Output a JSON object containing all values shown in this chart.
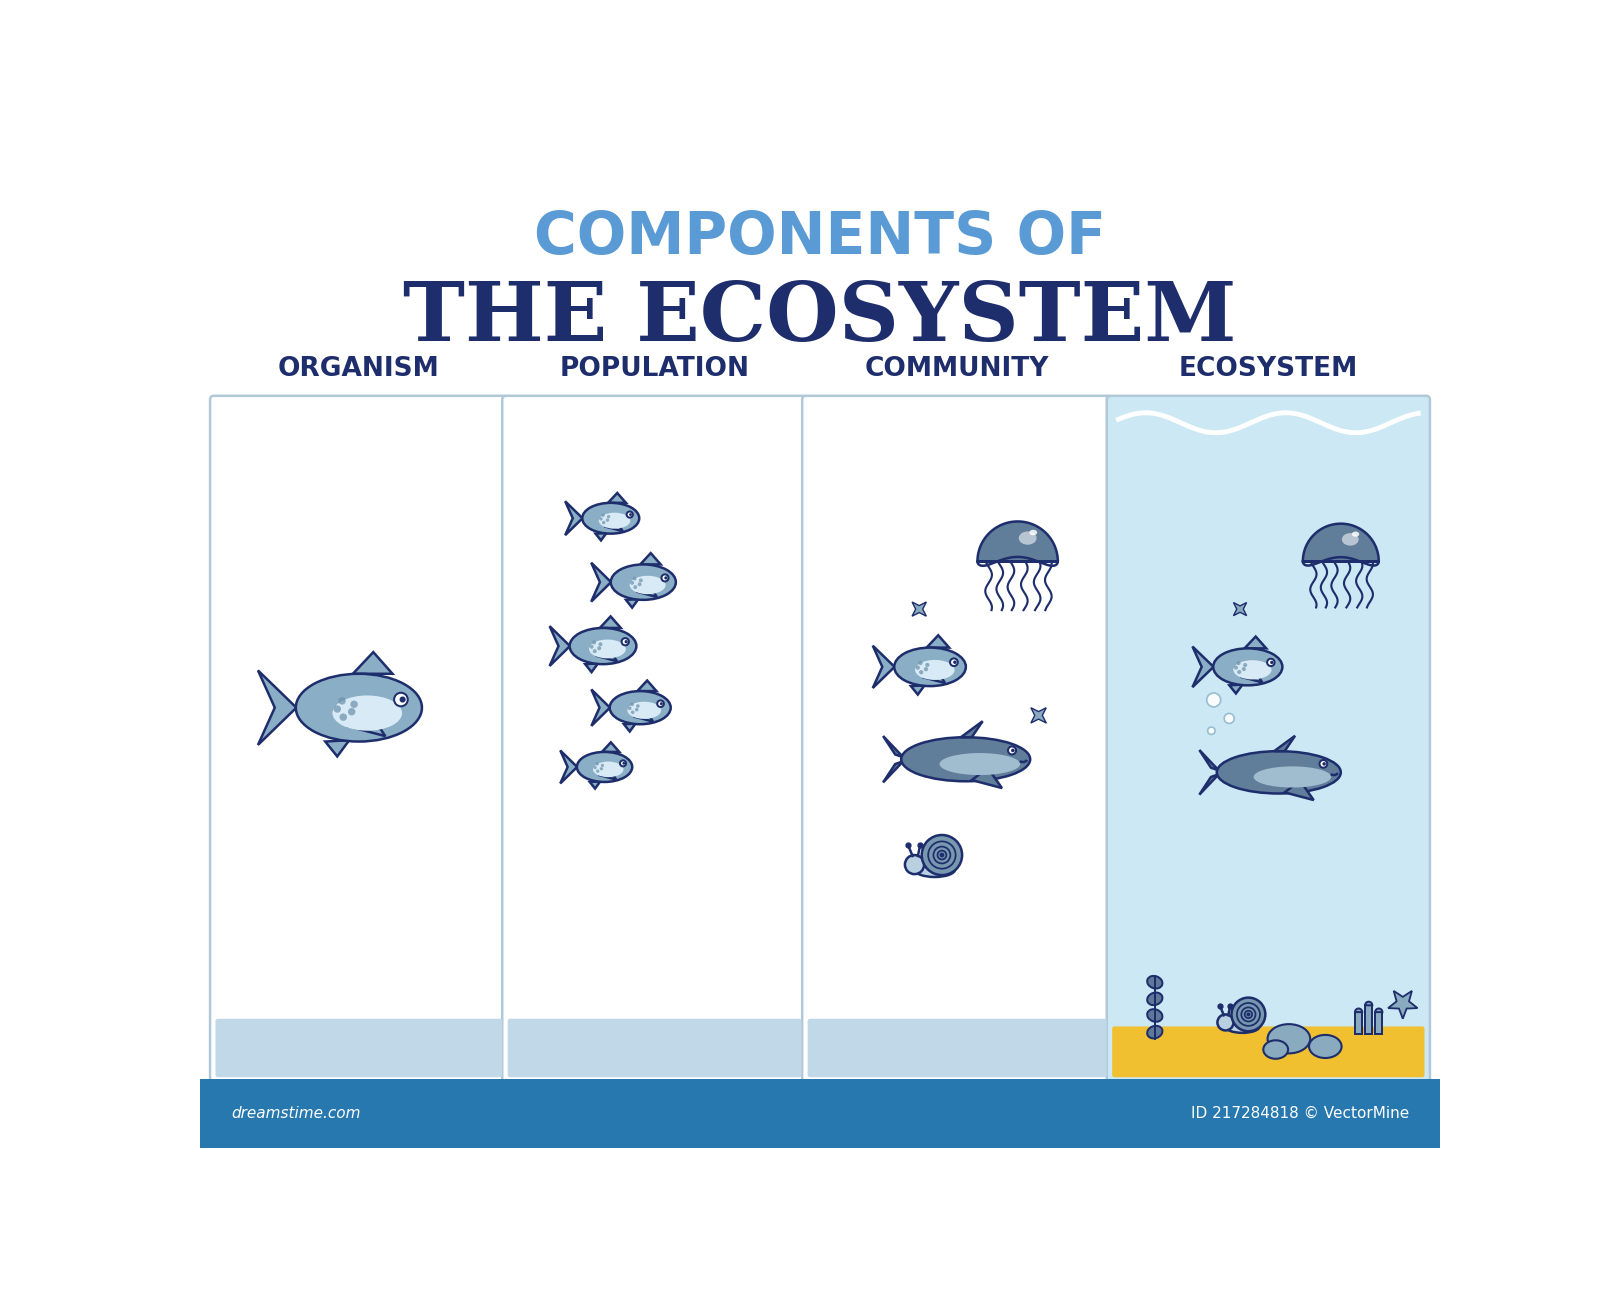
{
  "title_line1": "COMPONENTS OF",
  "title_line2": "THE ECOSYSTEM",
  "title_line1_color": "#5b9bd5",
  "title_line2_color": "#1e2d6b",
  "columns": [
    "ORGANISM",
    "POPULATION",
    "COMMUNITY",
    "ECOSYSTEM"
  ],
  "col_label_color": "#1e2d6b",
  "background_color": "#ffffff",
  "panel_border_color": "#b0c8d8",
  "panel_bg_white": "#ffffff",
  "panel_bg_ecosystem": "#cce8f5",
  "sand_color": "#f0c030",
  "footer_bg": "#2878b0",
  "footer_text_left": "dreamstime.com",
  "footer_text_right": "ID 217284818 © VectorMine",
  "fish_body_color": "#8aaec5",
  "fish_belly_color": "#d8eaf5",
  "fish_stripe_color": "#6a90aa",
  "fish_outline_color": "#1e2d6b",
  "whale_color": "#607d9a",
  "whale_belly_color": "#a0bdd0",
  "jellyfish_bell_color": "#607d9a",
  "jellyfish_dome_color": "#8aaec5",
  "snail_shell_color": "#7898b0",
  "snail_body_color": "#b8d0e0",
  "seaweed_color": "#607898",
  "rock_color": "#8aaabf",
  "coral_color": "#8aaabf",
  "starfish_color": "#8aaabf",
  "bubble_color": "#ffffff",
  "small_fish_color": "#8aaec5",
  "outline": "#1e2d6b",
  "bottom_strip_color": "#c0d8e8"
}
